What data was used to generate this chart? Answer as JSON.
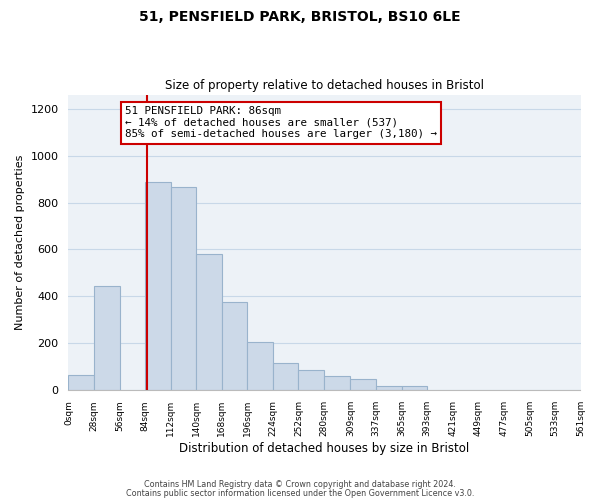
{
  "title1": "51, PENSFIELD PARK, BRISTOL, BS10 6LE",
  "title2": "Size of property relative to detached houses in Bristol",
  "xlabel": "Distribution of detached houses by size in Bristol",
  "ylabel": "Number of detached properties",
  "bar_left_edges": [
    0,
    28,
    56,
    84,
    112,
    140,
    168,
    196,
    224,
    252,
    280,
    309,
    337,
    365,
    393,
    421,
    449,
    477,
    505,
    533
  ],
  "bar_widths": [
    28,
    28,
    28,
    28,
    28,
    28,
    28,
    28,
    28,
    28,
    29,
    28,
    28,
    28,
    28,
    28,
    28,
    28,
    28,
    28
  ],
  "bar_heights": [
    65,
    445,
    0,
    887,
    865,
    580,
    375,
    205,
    115,
    88,
    60,
    47,
    20,
    18,
    0,
    0,
    0,
    0,
    0,
    0
  ],
  "bar_color": "#ccd9e8",
  "bar_edgecolor": "#99b3cc",
  "property_line_x": 86,
  "property_line_color": "#cc0000",
  "annotation_line1": "51 PENSFIELD PARK: 86sqm",
  "annotation_line2": "← 14% of detached houses are smaller (537)",
  "annotation_line3": "85% of semi-detached houses are larger (3,180) →",
  "annotation_box_edgecolor": "#cc0000",
  "annotation_box_facecolor": "#ffffff",
  "ylim": [
    0,
    1260
  ],
  "tick_labels": [
    "0sqm",
    "28sqm",
    "56sqm",
    "84sqm",
    "112sqm",
    "140sqm",
    "168sqm",
    "196sqm",
    "224sqm",
    "252sqm",
    "280sqm",
    "309sqm",
    "337sqm",
    "365sqm",
    "393sqm",
    "421sqm",
    "449sqm",
    "477sqm",
    "505sqm",
    "533sqm",
    "561sqm"
  ],
  "tick_positions": [
    0,
    28,
    56,
    84,
    112,
    140,
    168,
    196,
    224,
    252,
    280,
    309,
    337,
    365,
    393,
    421,
    449,
    477,
    505,
    533,
    561
  ],
  "footer_line1": "Contains HM Land Registry data © Crown copyright and database right 2024.",
  "footer_line2": "Contains public sector information licensed under the Open Government Licence v3.0.",
  "grid_color": "#c8d8e8",
  "background_color": "#edf2f7",
  "xlim_max": 561
}
